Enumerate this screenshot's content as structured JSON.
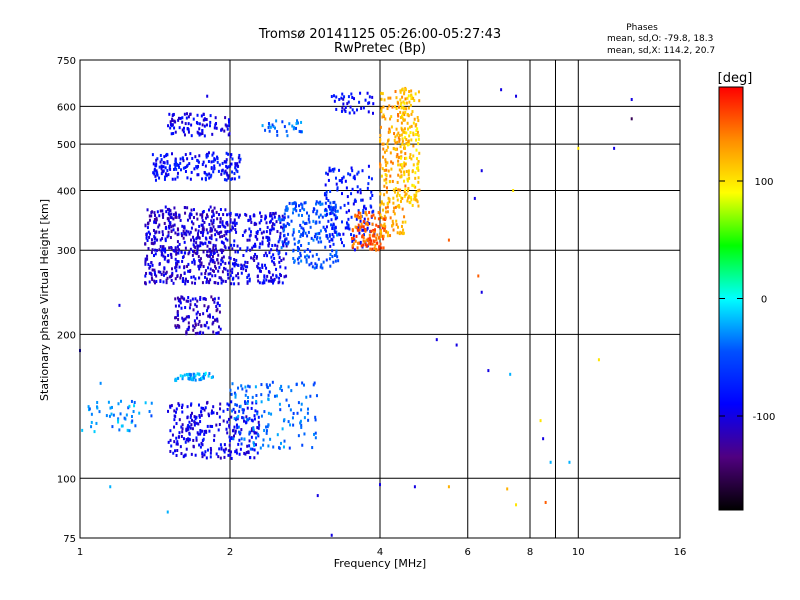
{
  "chart_data": {
    "type": "scatter",
    "title": "Tromsø 20141125 05:26:00-05:27:43",
    "subtitle": "RwPretec (Bp)",
    "xlabel": "Frequency [MHz]",
    "ylabel": "Stationary phase Virtual Height [km]",
    "x_scale": "log",
    "y_scale": "log",
    "xlim": [
      1,
      16
    ],
    "ylim": [
      75,
      750
    ],
    "x_ticks": [
      1,
      2,
      4,
      6,
      8,
      10,
      16
    ],
    "y_ticks": [
      75,
      100,
      200,
      300,
      400,
      500,
      600,
      750
    ],
    "x_gridlines": [
      2,
      4,
      6,
      8,
      9,
      10
    ],
    "y_gridlines": [
      100,
      200,
      300,
      400,
      500,
      600
    ],
    "grid": true,
    "legend": {
      "title": "Phases",
      "line1": "mean, sd,O: -79.8, 18.3",
      "line2": "mean, sd,X: 114.2, 20.7"
    },
    "colorbar": {
      "label": "[deg]",
      "range": [
        -180,
        180
      ],
      "ticks": [
        100,
        0,
        -100
      ],
      "colors": [
        "#ff0000",
        "#ff8c00",
        "#ffff00",
        "#00ff00",
        "#00ffff",
        "#0050ff",
        "#0000ff",
        "#500080",
        "#000000"
      ]
    },
    "clusters": [
      {
        "fmin": 1.35,
        "fmax": 1.98,
        "hmin": 255,
        "hmax": 370,
        "phase": -105,
        "n": 520
      },
      {
        "fmin": 1.98,
        "fmax": 2.6,
        "hmin": 255,
        "hmax": 360,
        "phase": -95,
        "n": 260
      },
      {
        "fmin": 2.5,
        "fmax": 3.3,
        "hmin": 275,
        "hmax": 380,
        "phase": -50,
        "n": 200
      },
      {
        "fmin": 3.1,
        "fmax": 3.9,
        "hmin": 300,
        "hmax": 450,
        "phase": -80,
        "n": 160
      },
      {
        "fmin": 3.5,
        "fmax": 4.1,
        "hmin": 300,
        "hmax": 360,
        "phase": 150,
        "n": 120
      },
      {
        "fmin": 4.0,
        "fmax": 4.5,
        "hmin": 320,
        "hmax": 650,
        "phase": 125,
        "n": 200
      },
      {
        "fmin": 4.4,
        "fmax": 4.8,
        "hmin": 370,
        "hmax": 660,
        "phase": 110,
        "n": 160
      },
      {
        "fmin": 1.4,
        "fmax": 2.1,
        "hmin": 420,
        "hmax": 480,
        "phase": -85,
        "n": 180
      },
      {
        "fmin": 1.5,
        "fmax": 2.0,
        "hmin": 520,
        "hmax": 580,
        "phase": -95,
        "n": 90
      },
      {
        "fmin": 1.55,
        "fmax": 1.92,
        "hmin": 200,
        "hmax": 240,
        "phase": -110,
        "n": 120
      },
      {
        "fmin": 1.5,
        "fmax": 2.3,
        "hmin": 110,
        "hmax": 145,
        "phase": -95,
        "n": 260
      },
      {
        "fmin": 1.55,
        "fmax": 1.85,
        "hmin": 160,
        "hmax": 166,
        "phase": -20,
        "n": 50
      },
      {
        "fmin": 2.0,
        "fmax": 3.0,
        "hmin": 115,
        "hmax": 160,
        "phase": -40,
        "n": 140
      },
      {
        "fmin": 1.0,
        "fmax": 1.4,
        "hmin": 125,
        "hmax": 145,
        "phase": -30,
        "n": 50
      },
      {
        "fmin": 3.2,
        "fmax": 3.9,
        "hmin": 580,
        "hmax": 640,
        "phase": -90,
        "n": 40
      },
      {
        "fmin": 2.3,
        "fmax": 2.8,
        "hmin": 520,
        "hmax": 560,
        "phase": -40,
        "n": 30
      }
    ],
    "isolated_points": [
      {
        "f": 1.8,
        "h": 630,
        "phase": -100
      },
      {
        "f": 7.5,
        "h": 630,
        "phase": -100
      },
      {
        "f": 7.0,
        "h": 650,
        "phase": -100
      },
      {
        "f": 12.8,
        "h": 620,
        "phase": -100
      },
      {
        "f": 12.8,
        "h": 565,
        "phase": -150
      },
      {
        "f": 10.0,
        "h": 490,
        "phase": 100
      },
      {
        "f": 11.8,
        "h": 490,
        "phase": -100
      },
      {
        "f": 6.4,
        "h": 440,
        "phase": -100
      },
      {
        "f": 7.4,
        "h": 400,
        "phase": 100
      },
      {
        "f": 6.2,
        "h": 385,
        "phase": -100
      },
      {
        "f": 5.5,
        "h": 315,
        "phase": 150
      },
      {
        "f": 6.3,
        "h": 265,
        "phase": 150
      },
      {
        "f": 6.4,
        "h": 245,
        "phase": -100
      },
      {
        "f": 5.2,
        "h": 195,
        "phase": -100
      },
      {
        "f": 5.7,
        "h": 190,
        "phase": -100
      },
      {
        "f": 11.0,
        "h": 177,
        "phase": 100
      },
      {
        "f": 6.6,
        "h": 168,
        "phase": -100
      },
      {
        "f": 7.3,
        "h": 165,
        "phase": -20
      },
      {
        "f": 8.4,
        "h": 132,
        "phase": 100
      },
      {
        "f": 8.5,
        "h": 121,
        "phase": -100
      },
      {
        "f": 8.8,
        "h": 108,
        "phase": -20
      },
      {
        "f": 9.6,
        "h": 108,
        "phase": -20
      },
      {
        "f": 5.5,
        "h": 96,
        "phase": 120
      },
      {
        "f": 4.7,
        "h": 96,
        "phase": -100
      },
      {
        "f": 3.0,
        "h": 92,
        "phase": -100
      },
      {
        "f": 7.2,
        "h": 95,
        "phase": 120
      },
      {
        "f": 8.6,
        "h": 89,
        "phase": 150
      },
      {
        "f": 1.5,
        "h": 85,
        "phase": -20
      },
      {
        "f": 3.2,
        "h": 76,
        "phase": -100
      },
      {
        "f": 4.0,
        "h": 97,
        "phase": -100
      },
      {
        "f": 7.5,
        "h": 88,
        "phase": 100
      },
      {
        "f": 1.15,
        "h": 96,
        "phase": -20
      },
      {
        "f": 1.1,
        "h": 158,
        "phase": -30
      },
      {
        "f": 1.2,
        "h": 230,
        "phase": -100
      },
      {
        "f": 1.0,
        "h": 185,
        "phase": -100
      }
    ]
  }
}
